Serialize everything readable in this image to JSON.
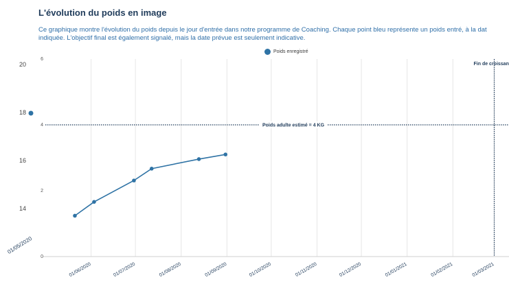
{
  "header": {
    "title": "L'évolution du poids en image",
    "description_line1": "Ce graphique montre l'évolution du poids depuis le jour d'entrée dans notre programme de Coaching. Chaque point bleu représente un poids entré, à la dat",
    "description_line2": "indiquée. L'objectif final est également signalé, mais la date prévue est seulement indicative."
  },
  "colors": {
    "series": "#2f73a5",
    "grid": "#e6e6e6",
    "guide": "#1f3b5a"
  },
  "chart_data": {
    "type": "line",
    "legend": [
      "Poids enregistré"
    ],
    "series": [
      {
        "name": "Poids enregistré",
        "dates": [
          "2020-05-21",
          "2020-06-03",
          "2020-06-30",
          "2020-07-12",
          "2020-08-13",
          "2020-08-31"
        ],
        "values": [
          1.24,
          1.66,
          2.31,
          2.67,
          2.96,
          3.1
        ]
      }
    ],
    "x_range": [
      "2020-05-01",
      "2021-03-11"
    ],
    "x_tick_dates": [
      "2020-06-01",
      "2020-07-01",
      "2020-08-01",
      "2020-09-01",
      "2020-10-01",
      "2020-11-01",
      "2020-12-01",
      "2021-01-01",
      "2021-02-01",
      "2021-03-01"
    ],
    "x_tick_labels": [
      "01/06/2020",
      "01/07/2020",
      "01/08/2020",
      "01/09/2020",
      "01/10/2020",
      "01/11/2020",
      "01/12/2020",
      "01/01/2021",
      "01/02/2021",
      "01/03/2021"
    ],
    "left_start_label": "01/05/2020",
    "right_axis": {
      "range": [
        0,
        6
      ],
      "ticks": [
        "0",
        "2",
        "4",
        "6"
      ]
    },
    "left_axis": {
      "range": [
        12,
        20
      ],
      "ticks": [
        "14",
        "16",
        "18",
        "20"
      ]
    },
    "target_line": {
      "value": 4,
      "label": "Poids adulte estimé = 4 KG"
    },
    "end_line": {
      "date": "2021-03-01",
      "label": "Fin de croissance"
    },
    "x_grid": true
  }
}
